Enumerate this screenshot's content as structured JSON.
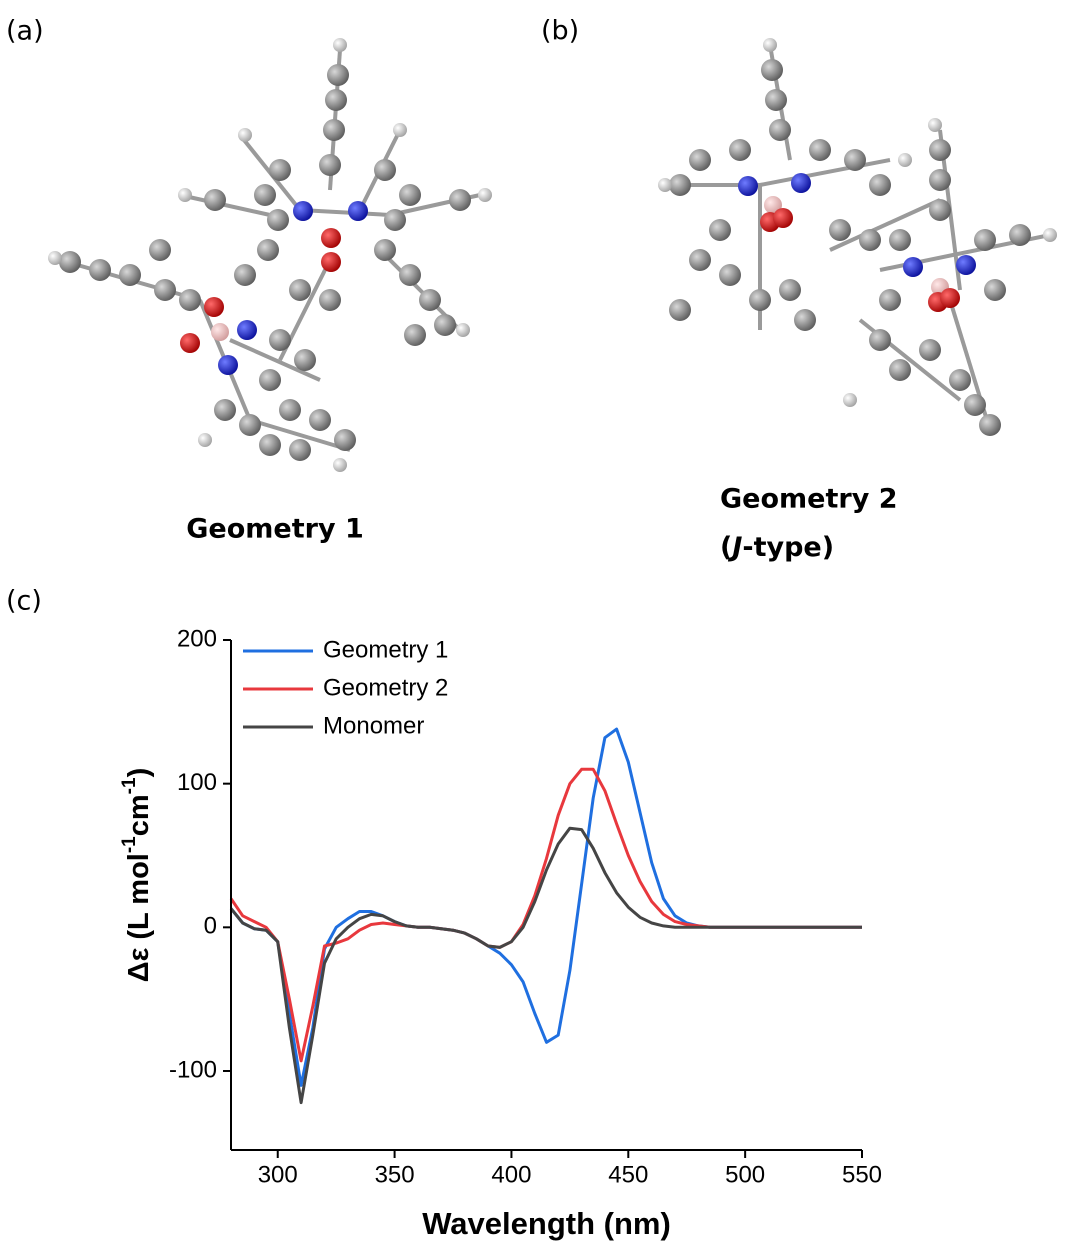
{
  "panels": {
    "a": "(a)",
    "b": "(b)",
    "c": "(c)"
  },
  "geometry_1_label": "Geometry 1",
  "geometry_2_label": "Geometry 2",
  "geometry_2_sublabel": [
    "(",
    "J",
    "-type)"
  ],
  "chart_data": {
    "type": "line",
    "x_label": "Wavelength (nm)",
    "y_label_parts": [
      "Δε (L mol",
      "-1",
      "cm",
      "-1",
      ")"
    ],
    "xlim": [
      280,
      550
    ],
    "ylim": [
      -155,
      200
    ],
    "xticks": [
      300,
      350,
      400,
      450,
      500,
      550
    ],
    "yticks": [
      -100,
      0,
      100,
      200
    ],
    "legend": "upper left",
    "x": [
      280,
      285,
      290,
      295,
      300,
      305,
      310,
      315,
      320,
      325,
      330,
      335,
      340,
      345,
      350,
      355,
      360,
      365,
      370,
      375,
      380,
      385,
      390,
      395,
      400,
      405,
      410,
      415,
      420,
      425,
      430,
      435,
      440,
      445,
      450,
      455,
      460,
      465,
      470,
      475,
      480,
      485,
      490,
      495,
      500,
      505,
      510,
      515,
      520,
      525,
      530,
      535,
      540,
      545,
      550
    ],
    "series": [
      {
        "name": "Geometry 1",
        "color": "#1f6fe0",
        "values": [
          13,
          3,
          -1,
          -2,
          -10,
          -60,
          -110,
          -70,
          -15,
          0,
          6,
          11,
          11,
          8,
          4,
          1,
          0,
          0,
          -1,
          -2,
          -4,
          -8,
          -13,
          -18,
          -26,
          -38,
          -60,
          -80,
          -75,
          -30,
          30,
          90,
          132,
          138,
          115,
          80,
          45,
          20,
          8,
          3,
          1,
          0,
          0,
          0,
          0,
          0,
          0,
          0,
          0,
          0,
          0,
          0,
          0,
          0,
          0
        ]
      },
      {
        "name": "Geometry 2",
        "color": "#e8383d",
        "values": [
          20,
          8,
          4,
          0,
          -10,
          -50,
          -93,
          -55,
          -13,
          -11,
          -8,
          -2,
          2,
          3,
          2,
          1,
          0,
          0,
          -1,
          -2,
          -4,
          -8,
          -13,
          -14,
          -10,
          2,
          22,
          48,
          78,
          100,
          110,
          110,
          95,
          72,
          50,
          32,
          18,
          9,
          4,
          2,
          1,
          0,
          0,
          0,
          0,
          0,
          0,
          0,
          0,
          0,
          0,
          0,
          0,
          0,
          0
        ]
      },
      {
        "name": "Monomer",
        "color": "#454545",
        "values": [
          13,
          3,
          -1,
          -2,
          -10,
          -70,
          -122,
          -75,
          -25,
          -8,
          0,
          6,
          9,
          8,
          4,
          1,
          0,
          0,
          -1,
          -2,
          -4,
          -8,
          -13,
          -14,
          -10,
          0,
          18,
          40,
          58,
          69,
          68,
          55,
          38,
          24,
          14,
          7,
          3,
          1,
          0,
          0,
          0,
          0,
          0,
          0,
          0,
          0,
          0,
          0,
          0,
          0,
          0,
          0,
          0,
          0,
          0
        ]
      }
    ]
  }
}
